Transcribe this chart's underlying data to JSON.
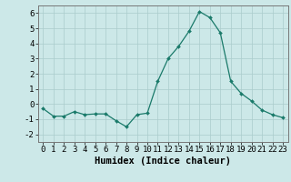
{
  "x": [
    0,
    1,
    2,
    3,
    4,
    5,
    6,
    7,
    8,
    9,
    10,
    11,
    12,
    13,
    14,
    15,
    16,
    17,
    18,
    19,
    20,
    21,
    22,
    23
  ],
  "y": [
    -0.3,
    -0.8,
    -0.8,
    -0.5,
    -0.7,
    -0.65,
    -0.65,
    -1.1,
    -1.5,
    -0.7,
    -0.6,
    1.5,
    3.0,
    3.8,
    4.8,
    6.1,
    5.7,
    4.7,
    1.5,
    0.7,
    0.2,
    -0.4,
    -0.7,
    -0.9
  ],
  "line_color": "#1a7a6a",
  "marker": "D",
  "marker_size": 2.0,
  "bg_color": "#cce8e8",
  "grid_color": "#aacccc",
  "xlabel": "Humidex (Indice chaleur)",
  "xlim": [
    -0.5,
    23.5
  ],
  "ylim": [
    -2.5,
    6.5
  ],
  "yticks": [
    -2,
    -1,
    0,
    1,
    2,
    3,
    4,
    5,
    6
  ],
  "xticks": [
    0,
    1,
    2,
    3,
    4,
    5,
    6,
    7,
    8,
    9,
    10,
    11,
    12,
    13,
    14,
    15,
    16,
    17,
    18,
    19,
    20,
    21,
    22,
    23
  ],
  "tick_fontsize": 6.5,
  "xlabel_fontsize": 7.5
}
